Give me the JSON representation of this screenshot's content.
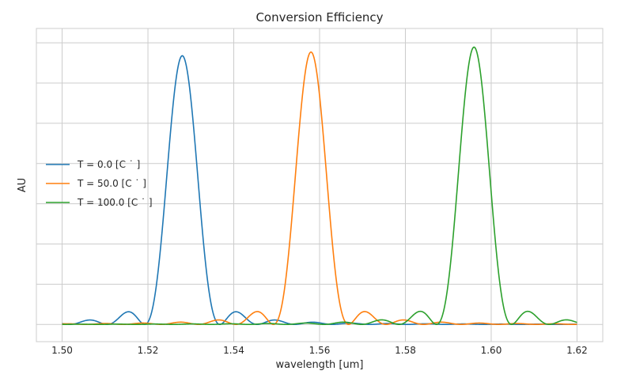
{
  "chart_data": {
    "type": "line",
    "title": "Conversion Efficiency",
    "xlabel": "wavelength [um]",
    "ylabel": "AU",
    "xlim": [
      1.494,
      1.626
    ],
    "ylim": [
      -0.06,
      1.03
    ],
    "xticks": [
      1.5,
      1.52,
      1.54,
      1.56,
      1.58,
      1.6,
      1.62
    ],
    "xtick_labels": [
      "1.50",
      "1.52",
      "1.54",
      "1.56",
      "1.58",
      "1.60",
      "1.62"
    ],
    "y_gridlines": [
      0.0,
      0.14,
      0.28,
      0.42,
      0.56,
      0.7,
      0.84,
      0.98
    ],
    "grid": true,
    "legend_position": "center-left",
    "series": [
      {
        "name": "T = 0.0  [C˙]",
        "legend_label": "T = 0.0  [C ˙ ]",
        "color": "#1f77b4",
        "center": 1.528,
        "peak": 0.935
      },
      {
        "name": "T = 50.0  [C˙]",
        "legend_label": "T = 50.0  [C ˙ ]",
        "color": "#ff7f0e",
        "center": 1.558,
        "peak": 0.948
      },
      {
        "name": "T = 100.0  [C˙]",
        "legend_label": "T = 100.0  [C ˙ ]",
        "color": "#2ca02c",
        "center": 1.596,
        "peak": 0.965
      }
    ],
    "x_range": [
      1.5,
      1.62
    ],
    "sinc_width_um": 0.0175
  }
}
